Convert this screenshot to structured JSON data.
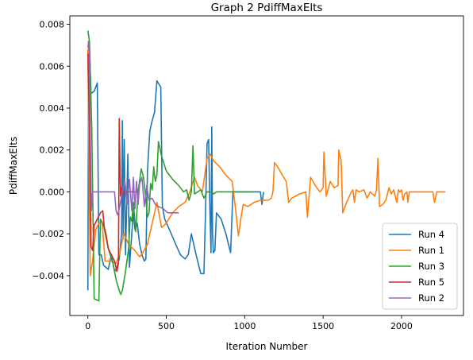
{
  "chart_data": {
    "type": "line",
    "title": "Graph 2 PdiffMaxElts",
    "xlabel": "Iteration Number",
    "ylabel": "PdiffMaxElts",
    "xlim": [
      -115,
      2395
    ],
    "ylim": [
      -0.0059,
      0.0084
    ],
    "xticks": [
      0,
      500,
      1000,
      1500,
      2000
    ],
    "yticks": [
      -0.004,
      -0.002,
      0.0,
      0.002,
      0.004,
      0.006,
      0.008
    ],
    "xtick_labels": [
      "0",
      "500",
      "1000",
      "1500",
      "2000"
    ],
    "ytick_labels": [
      "−0.004",
      "−0.002",
      "0.000",
      "0.002",
      "0.004",
      "0.006",
      "0.008"
    ],
    "grid": false,
    "legend_position": "lower-right",
    "series": [
      {
        "name": "Run 4",
        "color": "#1f77b4",
        "points": [
          [
            0,
            -0.0047
          ],
          [
            5,
            0.0072
          ],
          [
            10,
            0.0068
          ],
          [
            20,
            0.0047
          ],
          [
            40,
            0.0048
          ],
          [
            60,
            0.0052
          ],
          [
            70,
            -0.003
          ],
          [
            85,
            -0.003
          ],
          [
            100,
            -0.0035
          ],
          [
            130,
            -0.0037
          ],
          [
            150,
            -0.003
          ],
          [
            170,
            -0.0038
          ],
          [
            185,
            -0.0036
          ],
          [
            200,
            -0.0032
          ],
          [
            215,
            -0.002
          ],
          [
            220,
            0.0034
          ],
          [
            225,
            -0.0022
          ],
          [
            232,
            0.0025
          ],
          [
            240,
            -0.003
          ],
          [
            255,
            0.0018
          ],
          [
            265,
            -0.0036
          ],
          [
            280,
            -0.002
          ],
          [
            290,
            -0.001
          ],
          [
            300,
            -0.0018
          ],
          [
            315,
            -0.0015
          ],
          [
            330,
            -0.0025
          ],
          [
            345,
            -0.003
          ],
          [
            360,
            -0.0033
          ],
          [
            370,
            -0.0032
          ],
          [
            380,
            0.001
          ],
          [
            395,
            0.0029
          ],
          [
            410,
            0.0034
          ],
          [
            425,
            0.0038
          ],
          [
            440,
            0.0053
          ],
          [
            465,
            0.005
          ],
          [
            475,
            -0.0007
          ],
          [
            490,
            -0.0013
          ],
          [
            520,
            -0.0018
          ],
          [
            560,
            -0.0025
          ],
          [
            590,
            -0.003
          ],
          [
            620,
            -0.0032
          ],
          [
            640,
            -0.003
          ],
          [
            660,
            -0.002
          ],
          [
            690,
            -0.003
          ],
          [
            720,
            -0.0039
          ],
          [
            740,
            -0.0039
          ],
          [
            750,
            -0.001
          ],
          [
            760,
            0.0023
          ],
          [
            770,
            0.0025
          ],
          [
            778,
            -0.0008
          ],
          [
            785,
            -0.0029
          ],
          [
            790,
            0.0031
          ],
          [
            795,
            -0.002
          ],
          [
            800,
            -0.0029
          ],
          [
            810,
            -0.0028
          ],
          [
            820,
            -0.001
          ],
          [
            850,
            -0.0013
          ],
          [
            880,
            -0.002
          ],
          [
            910,
            -0.0029
          ],
          [
            925,
            0.0
          ],
          [
            1000,
            0.0
          ],
          [
            1050,
            0.0
          ],
          [
            1100,
            0.0
          ],
          [
            1110,
            -0.0006
          ],
          [
            1120,
            0.0
          ]
        ]
      },
      {
        "name": "Run 1",
        "color": "#ff7f0e",
        "points": [
          [
            0,
            0.0068
          ],
          [
            15,
            -0.004
          ],
          [
            30,
            -0.0033
          ],
          [
            50,
            -0.0018
          ],
          [
            70,
            -0.0015
          ],
          [
            90,
            -0.0014
          ],
          [
            110,
            -0.0033
          ],
          [
            140,
            -0.0033
          ],
          [
            180,
            -0.0034
          ],
          [
            200,
            -0.003
          ],
          [
            230,
            -0.002
          ],
          [
            260,
            -0.0025
          ],
          [
            300,
            -0.0028
          ],
          [
            330,
            -0.0031
          ],
          [
            350,
            -0.0029
          ],
          [
            380,
            -0.0025
          ],
          [
            410,
            -0.0015
          ],
          [
            440,
            -0.0005
          ],
          [
            470,
            -0.0017
          ],
          [
            500,
            -0.0015
          ],
          [
            540,
            -0.001
          ],
          [
            580,
            -0.0007
          ],
          [
            620,
            -0.0005
          ],
          [
            650,
            0.0
          ],
          [
            680,
            0.0007
          ],
          [
            700,
            0.0003
          ],
          [
            730,
            0.0
          ],
          [
            760,
            0.0016
          ],
          [
            780,
            0.0018
          ],
          [
            800,
            0.0015
          ],
          [
            840,
            0.0012
          ],
          [
            880,
            0.0008
          ],
          [
            920,
            0.0005
          ],
          [
            940,
            -0.0007
          ],
          [
            960,
            -0.0021
          ],
          [
            975,
            -0.0013
          ],
          [
            990,
            -0.0006
          ],
          [
            1020,
            -0.0007
          ],
          [
            1060,
            -0.0005
          ],
          [
            1100,
            -0.0004
          ],
          [
            1150,
            -0.0004
          ],
          [
            1170,
            -0.0003
          ],
          [
            1180,
            0.0
          ],
          [
            1190,
            0.0014
          ],
          [
            1210,
            0.0012
          ],
          [
            1240,
            0.0008
          ],
          [
            1265,
            0.0005
          ],
          [
            1280,
            -0.0005
          ],
          [
            1300,
            -0.0003
          ],
          [
            1350,
            -0.0001
          ],
          [
            1390,
            0.0
          ],
          [
            1400,
            -0.0012
          ],
          [
            1420,
            0.0007
          ],
          [
            1450,
            0.0003
          ],
          [
            1480,
            0.0
          ],
          [
            1500,
            0.0002
          ],
          [
            1505,
            0.0019
          ],
          [
            1520,
            -0.0002
          ],
          [
            1545,
            0.0005
          ],
          [
            1570,
            0.0002
          ],
          [
            1595,
            0.0003
          ],
          [
            1600,
            0.002
          ],
          [
            1615,
            0.0015
          ],
          [
            1625,
            -0.001
          ],
          [
            1650,
            -0.0005
          ],
          [
            1680,
            0.0
          ],
          [
            1690,
            0.0001
          ],
          [
            1700,
            -0.0005
          ],
          [
            1710,
            0.0001
          ],
          [
            1730,
            0.0
          ],
          [
            1760,
            0.0001
          ],
          [
            1780,
            -0.0003
          ],
          [
            1800,
            0.0
          ],
          [
            1830,
            -0.0002
          ],
          [
            1840,
            0.0001
          ],
          [
            1850,
            0.0016
          ],
          [
            1860,
            -0.0007
          ],
          [
            1880,
            -0.0006
          ],
          [
            1900,
            -0.0004
          ],
          [
            1910,
            -0.0001
          ],
          [
            1920,
            0.0002
          ],
          [
            1935,
            -0.0001
          ],
          [
            1950,
            0.0001
          ],
          [
            1970,
            -0.0005
          ],
          [
            1980,
            0.0001
          ],
          [
            1990,
            0.0
          ],
          [
            2000,
            0.0001
          ],
          [
            2010,
            -0.0004
          ],
          [
            2020,
            -0.0001
          ],
          [
            2035,
            0.0
          ],
          [
            2040,
            -0.0005
          ],
          [
            2050,
            0.0
          ],
          [
            2100,
            0.0
          ],
          [
            2200,
            0.0
          ],
          [
            2210,
            -0.0005
          ],
          [
            2225,
            0.0
          ],
          [
            2280,
            0.0
          ]
        ]
      },
      {
        "name": "Run 3",
        "color": "#2ca02c",
        "points": [
          [
            0,
            0.0077
          ],
          [
            10,
            0.0072
          ],
          [
            25,
            0.003
          ],
          [
            40,
            -0.0051
          ],
          [
            70,
            -0.0052
          ],
          [
            80,
            -0.0013
          ],
          [
            100,
            -0.0016
          ],
          [
            130,
            -0.0027
          ],
          [
            160,
            -0.0034
          ],
          [
            180,
            -0.0042
          ],
          [
            200,
            -0.0047
          ],
          [
            210,
            -0.0049
          ],
          [
            220,
            -0.0047
          ],
          [
            240,
            -0.0038
          ],
          [
            260,
            -0.0027
          ],
          [
            270,
            -0.0012
          ],
          [
            280,
            -0.0014
          ],
          [
            290,
            -0.0005
          ],
          [
            305,
            -0.0019
          ],
          [
            320,
            0.0
          ],
          [
            340,
            0.0011
          ],
          [
            355,
            0.0007
          ],
          [
            370,
            -0.0004
          ],
          [
            380,
            -0.0012
          ],
          [
            390,
            -0.001
          ],
          [
            400,
            0.0004
          ],
          [
            410,
            0.0001
          ],
          [
            420,
            0.0012
          ],
          [
            430,
            0.0005
          ],
          [
            440,
            0.0008
          ],
          [
            450,
            0.0024
          ],
          [
            470,
            0.0017
          ],
          [
            500,
            0.001
          ],
          [
            540,
            0.0006
          ],
          [
            580,
            0.0003
          ],
          [
            610,
            0.0
          ],
          [
            630,
            0.0001
          ],
          [
            645,
            -0.0004
          ],
          [
            660,
            0.0
          ],
          [
            670,
            0.0022
          ],
          [
            680,
            -0.0001
          ],
          [
            700,
            0.0
          ],
          [
            720,
            0.0001
          ],
          [
            740,
            -0.0003
          ],
          [
            760,
            0.0
          ],
          [
            790,
            0.0
          ],
          [
            800,
            -0.0001
          ],
          [
            820,
            0.0
          ],
          [
            900,
            0.0
          ],
          [
            1000,
            0.0
          ],
          [
            1050,
            0.0
          ]
        ]
      },
      {
        "name": "Run 5",
        "color": "#d62728",
        "points": [
          [
            0,
            0.0066
          ],
          [
            10,
            0.0031
          ],
          [
            20,
            -0.0026
          ],
          [
            30,
            -0.0028
          ],
          [
            40,
            -0.0016
          ],
          [
            60,
            -0.0013
          ],
          [
            80,
            -0.001
          ],
          [
            95,
            -0.0009
          ],
          [
            105,
            -0.0017
          ],
          [
            115,
            -0.002
          ],
          [
            130,
            -0.0027
          ],
          [
            150,
            -0.003
          ],
          [
            170,
            -0.0033
          ],
          [
            185,
            -0.0038
          ],
          [
            195,
            -0.0034
          ],
          [
            200,
            0.0035
          ],
          [
            208,
            -0.0002
          ],
          [
            215,
            0.0002
          ],
          [
            222,
            -0.0001
          ],
          [
            230,
            0.0
          ],
          [
            260,
            0.0
          ],
          [
            290,
            0.0
          ],
          [
            320,
            0.0
          ]
        ]
      },
      {
        "name": "Run 2",
        "color": "#9467bd",
        "points": [
          [
            0,
            0.0069
          ],
          [
            5,
            0.0072
          ],
          [
            10,
            0.006
          ],
          [
            15,
            0.003
          ],
          [
            22,
            -0.0009
          ],
          [
            30,
            0.0
          ],
          [
            60,
            0.0
          ],
          [
            100,
            0.0
          ],
          [
            150,
            0.0
          ],
          [
            170,
            0.0
          ],
          [
            180,
            -0.0009
          ],
          [
            190,
            -0.0011
          ],
          [
            200,
            -0.0008
          ],
          [
            220,
            0.0
          ],
          [
            235,
            0.0006
          ],
          [
            250,
            -0.0006
          ],
          [
            265,
            0.0006
          ],
          [
            280,
            -0.0009
          ],
          [
            290,
            0.0007
          ],
          [
            300,
            -0.0008
          ],
          [
            310,
            0.0005
          ],
          [
            320,
            -0.0006
          ],
          [
            330,
            0.0004
          ],
          [
            345,
            0.0007
          ],
          [
            360,
            -0.0007
          ],
          [
            375,
            0.0003
          ],
          [
            390,
            -0.0004
          ],
          [
            410,
            -0.0003
          ],
          [
            430,
            -0.0006
          ],
          [
            450,
            -0.0007
          ],
          [
            480,
            -0.0008
          ],
          [
            510,
            -0.001
          ],
          [
            540,
            -0.001
          ],
          [
            560,
            -0.001
          ],
          [
            580,
            -0.001
          ]
        ]
      }
    ]
  }
}
